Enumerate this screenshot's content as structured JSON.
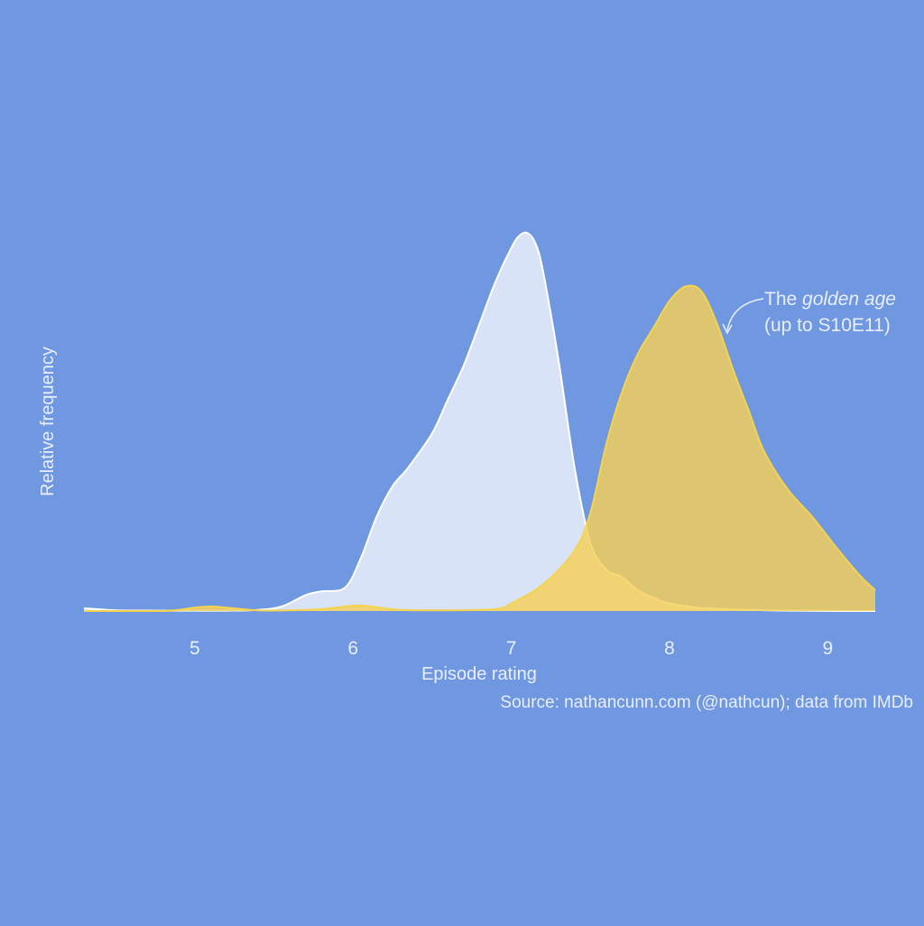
{
  "chart_data": {
    "type": "area",
    "xlabel": "Episode rating",
    "ylabel": "Relative frequency",
    "xlim": [
      4.3,
      9.3
    ],
    "ylim": [
      0,
      1.0
    ],
    "x_ticks": [
      5,
      6,
      7,
      8,
      9
    ],
    "caption": "Source: nathancunn.com (@nathcun); data from IMDb",
    "annotation": {
      "prefix": "The ",
      "emphasis": "golden age",
      "line2": "(up to S10E11)",
      "target_series": "golden-age"
    },
    "colors": {
      "background": "#6f98e0",
      "later_fill": "#d8e3f7",
      "later_stroke": "#ffffff",
      "golden_fill": "#f7d76a",
      "golden_stroke": "#f5d34f",
      "text": "#e8eefb"
    },
    "series": [
      {
        "id": "later",
        "fill": "#d8e3f7",
        "stroke": "#ffffff",
        "fill_opacity": 1.0,
        "x": [
          4.3,
          4.35,
          4.5,
          4.8,
          5.0,
          5.2,
          5.4,
          5.55,
          5.7,
          5.8,
          5.95,
          6.05,
          6.15,
          6.25,
          6.35,
          6.5,
          6.6,
          6.7,
          6.8,
          6.9,
          7.0,
          7.05,
          7.1,
          7.15,
          7.2,
          7.3,
          7.4,
          7.5,
          7.6,
          7.7,
          7.8,
          7.9,
          8.0,
          8.2,
          8.5,
          8.8,
          9.1,
          9.3
        ],
        "y": [
          0.007,
          0.006,
          0.002,
          0.001,
          0.001,
          0.001,
          0.003,
          0.012,
          0.042,
          0.052,
          0.062,
          0.14,
          0.25,
          0.33,
          0.38,
          0.47,
          0.56,
          0.65,
          0.76,
          0.87,
          0.96,
          0.992,
          1.0,
          0.975,
          0.9,
          0.66,
          0.38,
          0.18,
          0.11,
          0.09,
          0.055,
          0.035,
          0.02,
          0.008,
          0.003,
          0.001,
          0.0,
          0.0
        ]
      },
      {
        "id": "golden-age",
        "fill": "#f5d155",
        "stroke": "#f5d34f",
        "fill_opacity": 0.82,
        "x": [
          4.3,
          4.8,
          5.0,
          5.1,
          5.2,
          5.4,
          5.6,
          5.8,
          6.0,
          6.1,
          6.3,
          6.6,
          6.9,
          7.0,
          7.2,
          7.4,
          7.5,
          7.6,
          7.7,
          7.8,
          7.9,
          8.0,
          8.1,
          8.2,
          8.3,
          8.4,
          8.5,
          8.6,
          8.75,
          8.9,
          9.05,
          9.2,
          9.3
        ],
        "y": [
          0.0,
          0.0,
          0.009,
          0.012,
          0.009,
          0.002,
          0.002,
          0.005,
          0.014,
          0.013,
          0.003,
          0.002,
          0.005,
          0.02,
          0.07,
          0.16,
          0.26,
          0.44,
          0.58,
          0.68,
          0.75,
          0.82,
          0.858,
          0.846,
          0.76,
          0.64,
          0.53,
          0.42,
          0.32,
          0.25,
          0.17,
          0.095,
          0.055
        ]
      }
    ]
  }
}
